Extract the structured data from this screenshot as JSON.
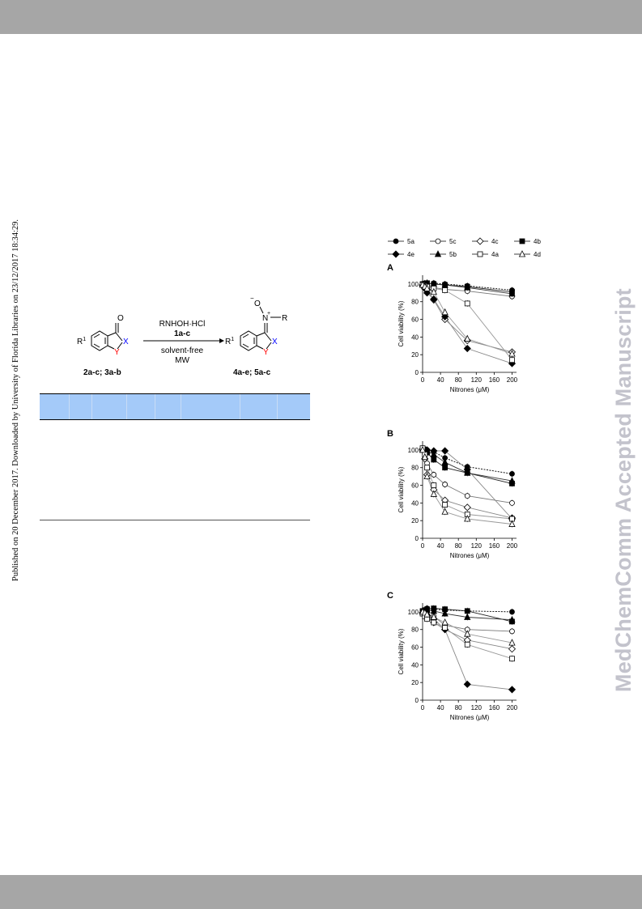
{
  "side_note": "Published on 20 December 2017. Downloaded by University of Florida Libraries on 23/12/2017 18:34:29.",
  "watermark": "MedChemComm Accepted Manuscript",
  "scheme": {
    "reactant_label": "2a-c; 3a-b",
    "product_label": "4a-e; 5a-c",
    "reagent_line1": "RNHOH·HCl",
    "reagent_line2": "1a-c",
    "condition_line1": "solvent-free",
    "condition_line2": "MW",
    "r1_label": "R",
    "r1_sup": "1",
    "x_label": "X",
    "y_label": "Y",
    "o_label": "O",
    "n_label": "N",
    "r_label": "R",
    "colors": {
      "x": "#0000ff",
      "y": "#ff0000"
    }
  },
  "legend": {
    "items": [
      "5a",
      "5c",
      "4c",
      "4b",
      "4e",
      "5b",
      "4a",
      "4d"
    ]
  },
  "chart_data": [
    {
      "type": "line",
      "panel": "A",
      "xlabel": "Nitrones (μM)",
      "ylabel": "Cell viability (%)",
      "xticks": [
        0,
        40,
        80,
        120,
        160,
        200
      ],
      "yticks": [
        0,
        20,
        40,
        60,
        80,
        100
      ],
      "xlim": [
        0,
        210
      ],
      "ylim": [
        0,
        110
      ],
      "x": [
        0,
        5,
        10,
        25,
        50,
        100,
        200
      ],
      "series": [
        {
          "name": "5a",
          "marker": "filled-circle",
          "values": [
            100,
            101,
            100,
            101,
            100,
            98,
            93
          ]
        },
        {
          "name": "5c",
          "marker": "open-circle",
          "values": [
            100,
            99,
            98,
            96,
            94,
            92,
            86
          ]
        },
        {
          "name": "4c",
          "marker": "open-diamond",
          "values": [
            99,
            96,
            94,
            82,
            60,
            36,
            23
          ]
        },
        {
          "name": "4b",
          "marker": "filled-square",
          "values": [
            100,
            100,
            101,
            100,
            99,
            97,
            91
          ]
        },
        {
          "name": "4e",
          "marker": "filled-diamond",
          "values": [
            98,
            95,
            90,
            83,
            63,
            27,
            10
          ]
        },
        {
          "name": "5b",
          "marker": "filled-triangle",
          "values": [
            100,
            100,
            101,
            100,
            99,
            96,
            89
          ]
        },
        {
          "name": "4a",
          "marker": "open-square",
          "values": [
            99,
            98,
            97,
            95,
            93,
            78,
            14
          ]
        },
        {
          "name": "4d",
          "marker": "open-triangle",
          "values": [
            99,
            97,
            95,
            91,
            68,
            38,
            21
          ]
        }
      ]
    },
    {
      "type": "line",
      "panel": "B",
      "xlabel": "Nitrones (μM)",
      "ylabel": "Cell viability (%)",
      "xticks": [
        0,
        40,
        80,
        120,
        160,
        200
      ],
      "yticks": [
        0,
        20,
        40,
        60,
        80,
        100
      ],
      "xlim": [
        0,
        210
      ],
      "ylim": [
        0,
        110
      ],
      "x": [
        0,
        5,
        10,
        25,
        50,
        100,
        200
      ],
      "series": [
        {
          "name": "5a",
          "marker": "filled-circle",
          "values": [
            100,
            101,
            100,
            98,
            91,
            81,
            73
          ]
        },
        {
          "name": "5c",
          "marker": "open-circle",
          "values": [
            100,
            95,
            85,
            72,
            61,
            48,
            40
          ]
        },
        {
          "name": "4c",
          "marker": "open-diamond",
          "values": [
            100,
            90,
            72,
            55,
            43,
            35,
            23
          ]
        },
        {
          "name": "4b",
          "marker": "filled-square",
          "values": [
            100,
            100,
            97,
            89,
            80,
            74,
            62
          ]
        },
        {
          "name": "4e",
          "marker": "filled-diamond",
          "values": [
            101,
            100,
            100,
            99,
            99,
            78,
            22
          ]
        },
        {
          "name": "5b",
          "marker": "filled-triangle",
          "values": [
            101,
            100,
            99,
            95,
            86,
            74,
            65
          ]
        },
        {
          "name": "4a",
          "marker": "open-square",
          "values": [
            102,
            95,
            80,
            60,
            38,
            27,
            22
          ]
        },
        {
          "name": "4d",
          "marker": "open-triangle",
          "values": [
            100,
            92,
            70,
            50,
            30,
            22,
            16
          ]
        }
      ]
    },
    {
      "type": "line",
      "panel": "C",
      "xlabel": "Nitrones (μM)",
      "ylabel": "Cell viability (%)",
      "xticks": [
        0,
        40,
        80,
        120,
        160,
        200
      ],
      "yticks": [
        0,
        20,
        40,
        60,
        80,
        100
      ],
      "xlim": [
        0,
        210
      ],
      "ylim": [
        0,
        110
      ],
      "x": [
        0,
        5,
        10,
        25,
        50,
        100,
        200
      ],
      "series": [
        {
          "name": "5a",
          "marker": "filled-circle",
          "values": [
            101,
            102,
            104,
            103,
            102,
            101,
            100
          ]
        },
        {
          "name": "5c",
          "marker": "open-circle",
          "values": [
            100,
            98,
            97,
            95,
            85,
            80,
            78
          ]
        },
        {
          "name": "4c",
          "marker": "open-diamond",
          "values": [
            99,
            97,
            94,
            88,
            80,
            68,
            58
          ]
        },
        {
          "name": "4b",
          "marker": "filled-square",
          "values": [
            101,
            102,
            103,
            104,
            103,
            101,
            89
          ]
        },
        {
          "name": "4e",
          "marker": "filled-diamond",
          "values": [
            99,
            98,
            96,
            92,
            80,
            18,
            12
          ]
        },
        {
          "name": "5b",
          "marker": "filled-triangle",
          "values": [
            100,
            101,
            102,
            101,
            98,
            94,
            91
          ]
        },
        {
          "name": "4a",
          "marker": "open-square",
          "values": [
            98,
            95,
            92,
            88,
            82,
            63,
            47
          ]
        },
        {
          "name": "4d",
          "marker": "open-triangle",
          "values": [
            100,
            99,
            97,
            94,
            88,
            75,
            65
          ]
        }
      ]
    }
  ]
}
